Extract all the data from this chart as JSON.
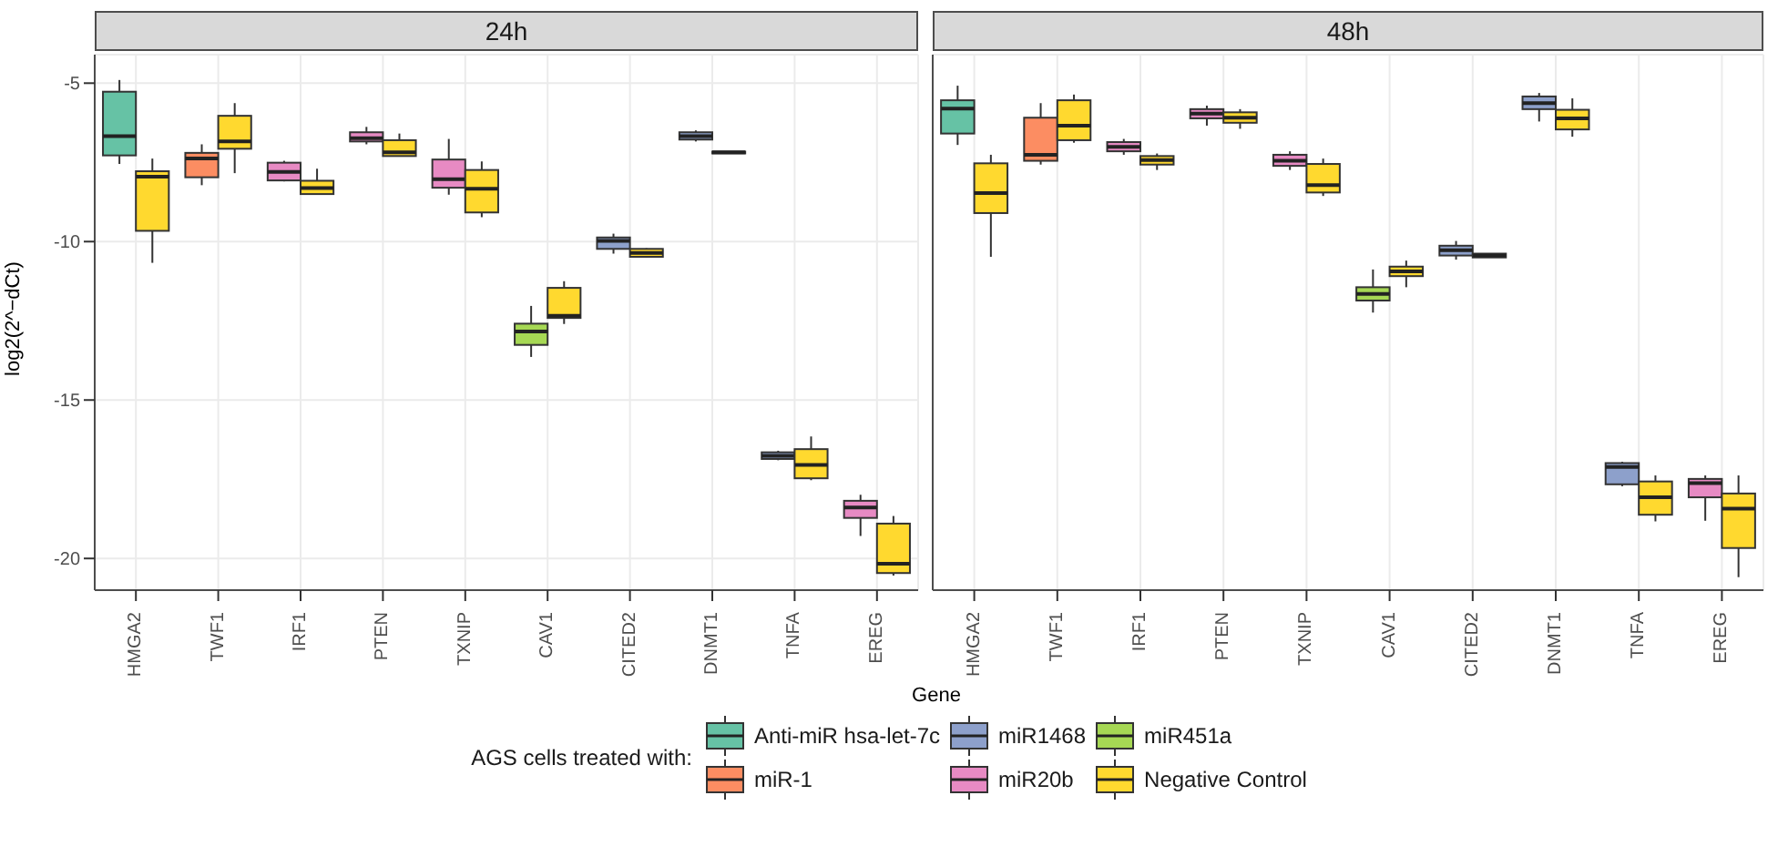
{
  "chart_data": [
    {
      "type": "box",
      "title": "24h",
      "ylabel": "log2(2^−dCt)",
      "xlabel": "Gene",
      "legend_title": "AGS cells treated with:",
      "legend": "bottom",
      "grid": true,
      "ylim": [
        -21,
        -4.1
      ],
      "yticks": [
        -5,
        -10,
        -15,
        -20
      ],
      "categories": [
        "HMGA2",
        "TWF1",
        "IRF1",
        "PTEN",
        "TXNIP",
        "CAV1",
        "CITED2",
        "DNMT1",
        "TNFA",
        "EREG"
      ],
      "series": [
        {
          "name": "Anti-miR hsa-let-7c",
          "color": "#66c2a5",
          "boxes": [
            {
              "low": -7.55,
              "q1": -7.28,
              "median": -6.67,
              "q3": -5.27,
              "high": -4.9
            },
            null,
            null,
            null,
            null,
            null,
            null,
            null,
            null,
            null
          ]
        },
        {
          "name": "miR-1",
          "color": "#fc8d62",
          "boxes": [
            null,
            {
              "low": -8.22,
              "q1": -7.97,
              "median": -7.38,
              "q3": -7.2,
              "high": -6.93
            },
            null,
            null,
            null,
            null,
            null,
            null,
            null,
            null
          ]
        },
        {
          "name": "miR1468",
          "color": "#8da0cb",
          "boxes": [
            null,
            null,
            null,
            null,
            null,
            null,
            {
              "low": -10.38,
              "q1": -10.23,
              "median": -9.98,
              "q3": -9.87,
              "high": -9.75
            },
            {
              "low": -6.84,
              "q1": -6.78,
              "median": -6.67,
              "q3": -6.55,
              "high": -6.49
            },
            {
              "low": -16.9,
              "q1": -16.86,
              "median": -16.76,
              "q3": -16.65,
              "high": -16.6
            },
            null
          ]
        },
        {
          "name": "miR20b",
          "color": "#e78ac3",
          "boxes": [
            null,
            null,
            {
              "low": -8.1,
              "q1": -8.07,
              "median": -7.8,
              "q3": -7.51,
              "high": -7.45
            },
            {
              "low": -6.93,
              "q1": -6.84,
              "median": -6.74,
              "q3": -6.55,
              "high": -6.38
            },
            {
              "low": -8.52,
              "q1": -8.3,
              "median": -8.03,
              "q3": -7.41,
              "high": -6.76
            },
            null,
            null,
            null,
            null,
            {
              "low": -19.29,
              "q1": -18.72,
              "median": -18.39,
              "q3": -18.18,
              "high": -17.99
            }
          ]
        },
        {
          "name": "miR451a",
          "color": "#a6d854",
          "boxes": [
            null,
            null,
            null,
            null,
            null,
            {
              "low": -13.64,
              "q1": -13.26,
              "median": -12.84,
              "q3": -12.59,
              "high": -12.03
            },
            null,
            null,
            null,
            null
          ]
        },
        {
          "name": "Negative Control",
          "color": "#ffd92f",
          "boxes": [
            {
              "low": -10.67,
              "q1": -9.66,
              "median": -7.95,
              "q3": -7.78,
              "high": -7.38
            },
            {
              "low": -7.84,
              "q1": -7.07,
              "median": -6.84,
              "q3": -6.03,
              "high": -5.63
            },
            {
              "low": -8.5,
              "q1": -8.5,
              "median": -8.31,
              "q3": -8.08,
              "high": -7.7
            },
            {
              "low": -7.3,
              "q1": -7.3,
              "median": -7.18,
              "q3": -6.8,
              "high": -6.59
            },
            {
              "low": -9.23,
              "q1": -9.08,
              "median": -8.33,
              "q3": -7.74,
              "high": -7.47
            },
            {
              "low": -12.6,
              "q1": -12.41,
              "median": -12.34,
              "q3": -11.46,
              "high": -11.25
            },
            {
              "low": -10.5,
              "q1": -10.48,
              "median": -10.36,
              "q3": -10.23,
              "high": -10.21
            },
            {
              "low": -7.22,
              "q1": -7.2,
              "median": -7.18,
              "q3": -7.16,
              "high": -7.15
            },
            {
              "low": -17.53,
              "q1": -17.47,
              "median": -17.05,
              "q3": -16.55,
              "high": -16.15
            },
            {
              "low": -20.54,
              "q1": -20.46,
              "median": -20.17,
              "q3": -18.9,
              "high": -18.66
            }
          ]
        }
      ]
    },
    {
      "type": "box",
      "title": "48h",
      "grid": true,
      "tick_labels": "x",
      "ylim": [
        -21,
        -4.1
      ],
      "yticks": [
        -5,
        -10,
        -15,
        -20
      ],
      "categories": [
        "HMGA2",
        "TWF1",
        "IRF1",
        "PTEN",
        "TXNIP",
        "CAV1",
        "CITED2",
        "DNMT1",
        "TNFA",
        "EREG"
      ],
      "series": [
        {
          "color": "#66c2a5",
          "boxes": [
            {
              "low": -6.95,
              "q1": -6.59,
              "median": -5.8,
              "q3": -5.54,
              "high": -5.08
            },
            null,
            null,
            null,
            null,
            null,
            null,
            null,
            null,
            null
          ]
        },
        {
          "color": "#fc8d62",
          "boxes": [
            null,
            {
              "low": -7.57,
              "q1": -7.45,
              "median": -7.26,
              "q3": -6.09,
              "high": -5.63
            },
            null,
            null,
            null,
            null,
            null,
            null,
            null,
            null
          ]
        },
        {
          "color": "#8da0cb",
          "boxes": [
            null,
            null,
            null,
            null,
            null,
            null,
            {
              "low": -10.57,
              "q1": -10.44,
              "median": -10.27,
              "q3": -10.13,
              "high": -9.98
            },
            {
              "low": -6.21,
              "q1": -5.82,
              "median": -5.63,
              "q3": -5.42,
              "high": -5.31
            },
            {
              "low": -17.72,
              "q1": -17.66,
              "median": -17.11,
              "q3": -16.99,
              "high": -16.95
            },
            null
          ]
        },
        {
          "color": "#e78ac3",
          "boxes": [
            null,
            null,
            {
              "low": -7.26,
              "q1": -7.15,
              "median": -7.01,
              "q3": -6.86,
              "high": -6.76
            },
            {
              "low": -6.34,
              "q1": -6.11,
              "median": -5.96,
              "q3": -5.82,
              "high": -5.71
            },
            {
              "low": -7.74,
              "q1": -7.61,
              "median": -7.45,
              "q3": -7.26,
              "high": -7.15
            },
            null,
            null,
            null,
            null,
            {
              "low": -18.81,
              "q1": -18.07,
              "median": -17.62,
              "q3": -17.49,
              "high": -17.38
            }
          ]
        },
        {
          "color": "#a6d854",
          "boxes": [
            null,
            null,
            null,
            null,
            null,
            {
              "low": -12.24,
              "q1": -11.86,
              "median": -11.65,
              "q3": -11.44,
              "high": -10.88
            },
            null,
            null,
            null,
            null
          ]
        },
        {
          "color": "#ffd92f",
          "boxes": [
            {
              "low": -10.48,
              "q1": -9.1,
              "median": -8.47,
              "q3": -7.53,
              "high": -7.26
            },
            {
              "low": -6.88,
              "q1": -6.8,
              "median": -6.34,
              "q3": -5.54,
              "high": -5.36
            },
            {
              "low": -7.74,
              "q1": -7.57,
              "median": -7.43,
              "q3": -7.3,
              "high": -7.22
            },
            {
              "low": -6.44,
              "q1": -6.25,
              "median": -6.09,
              "q3": -5.92,
              "high": -5.82
            },
            {
              "low": -8.56,
              "q1": -8.45,
              "median": -8.22,
              "q3": -7.55,
              "high": -7.38
            },
            {
              "low": -11.44,
              "q1": -11.09,
              "median": -10.94,
              "q3": -10.79,
              "high": -10.6
            },
            {
              "low": -10.5,
              "q1": -10.5,
              "median": -10.44,
              "q3": -10.38,
              "high": -10.38
            },
            {
              "low": -6.69,
              "q1": -6.46,
              "median": -6.11,
              "q3": -5.84,
              "high": -5.48
            },
            {
              "low": -18.83,
              "q1": -18.62,
              "median": -18.07,
              "q3": -17.57,
              "high": -17.38
            },
            {
              "low": -20.59,
              "q1": -19.67,
              "median": -18.43,
              "q3": -17.95,
              "high": -17.38
            }
          ]
        }
      ]
    }
  ]
}
